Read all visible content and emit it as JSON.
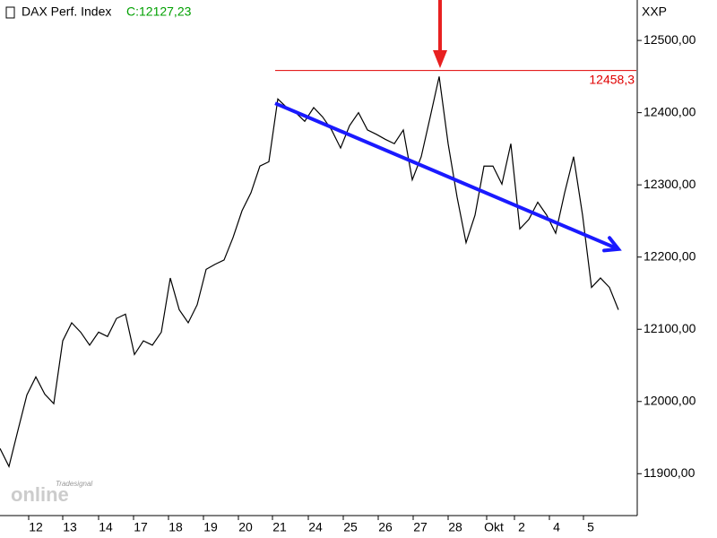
{
  "chart_data": {
    "type": "line",
    "title": "DAX Perf. Index",
    "close_label": "C:12127,23",
    "axis_label": "XXP",
    "watermark_small": "Tradesignal",
    "watermark": "online",
    "series": [
      {
        "name": "DAX Perf. Index",
        "color": "#000000",
        "values": [
          11935,
          11910,
          11960,
          12009,
          12034,
          12010,
          11997,
          12084,
          12109,
          12096,
          12078,
          12096,
          12090,
          12115,
          12121,
          12065,
          12084,
          12078,
          12096,
          12171,
          12127,
          12109,
          12134,
          12183,
          12190,
          12196,
          12227,
          12264,
          12289,
          12326,
          12332,
          12419,
          12407,
          12400,
          12388,
          12407,
          12394,
          12376,
          12351,
          12382,
          12400,
          12376,
          12370,
          12363,
          12357,
          12376,
          12307,
          12339,
          12394,
          12450,
          12357,
          12283,
          12220,
          12258,
          12326,
          12326,
          12301,
          12357,
          12239,
          12252,
          12276,
          12258,
          12233,
          12289,
          12339,
          12258,
          12158,
          12171,
          12158,
          12127
        ]
      }
    ],
    "xlim": [
      0,
      71
    ],
    "xticks": [
      {
        "value": 4,
        "label": "12"
      },
      {
        "value": 7.8,
        "label": "13"
      },
      {
        "value": 11.8,
        "label": "14"
      },
      {
        "value": 15.7,
        "label": "17"
      },
      {
        "value": 19.6,
        "label": "18"
      },
      {
        "value": 23.5,
        "label": "19"
      },
      {
        "value": 27.4,
        "label": "20"
      },
      {
        "value": 31.2,
        "label": "21"
      },
      {
        "value": 35.2,
        "label": "24"
      },
      {
        "value": 39.1,
        "label": "25"
      },
      {
        "value": 43,
        "label": "26"
      },
      {
        "value": 46.9,
        "label": "27"
      },
      {
        "value": 50.8,
        "label": "28"
      },
      {
        "value": 55.1,
        "label": "Okt"
      },
      {
        "value": 58.2,
        "label": "2"
      },
      {
        "value": 62.1,
        "label": "4"
      },
      {
        "value": 65.9,
        "label": "5"
      }
    ],
    "ylim": [
      11842,
      12556
    ],
    "yticks": [
      {
        "value": 11900,
        "label": "11900,00"
      },
      {
        "value": 12000,
        "label": "12000,00"
      },
      {
        "value": 12100,
        "label": "12100,00"
      },
      {
        "value": 12200,
        "label": "12200,00"
      },
      {
        "value": 12300,
        "label": "12300,00"
      },
      {
        "value": 12400,
        "label": "12400,00"
      },
      {
        "value": 12500,
        "label": "12500,00"
      }
    ],
    "resistance": {
      "value": 12458.3,
      "label": "12458,3",
      "from": 30.7,
      "color": "#e00000"
    },
    "trend": {
      "from": [
        30.7,
        12413
      ],
      "to": [
        69,
        12211
      ],
      "color": "#1a1aff"
    },
    "marker": {
      "x": 49.1,
      "color": "#e82020"
    }
  }
}
